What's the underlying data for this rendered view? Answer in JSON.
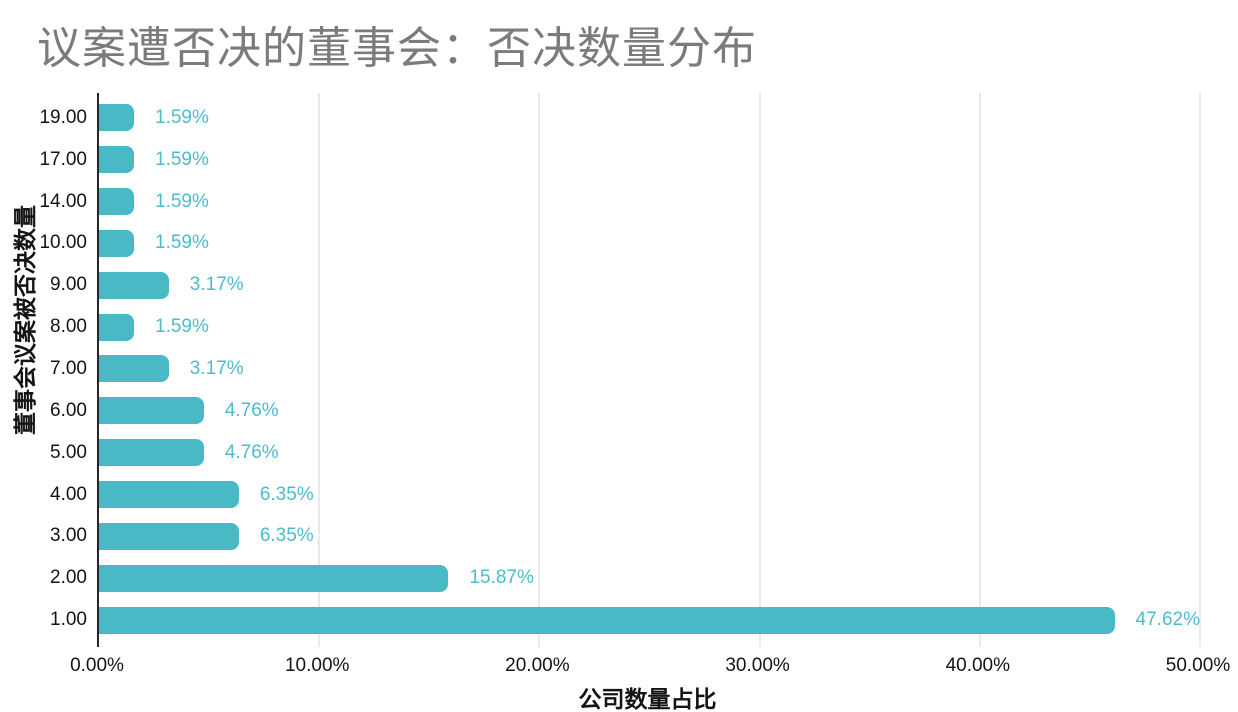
{
  "title": "议案遭否决的董事会：否决数量分布",
  "chart_data": {
    "type": "bar",
    "orientation": "horizontal",
    "title": "议案遭否决的董事会：否决数量分布",
    "xlabel": "公司数量占比",
    "ylabel": "董事会议案被否决数量",
    "categories": [
      "19.00",
      "17.00",
      "14.00",
      "10.00",
      "9.00",
      "8.00",
      "7.00",
      "6.00",
      "5.00",
      "4.00",
      "3.00",
      "2.00",
      "1.00"
    ],
    "values": [
      1.59,
      1.59,
      1.59,
      1.59,
      3.17,
      1.59,
      3.17,
      4.76,
      4.76,
      6.35,
      6.35,
      15.87,
      47.62
    ],
    "value_labels": [
      "1.59%",
      "1.59%",
      "1.59%",
      "1.59%",
      "3.17%",
      "1.59%",
      "3.17%",
      "4.76%",
      "4.76%",
      "6.35%",
      "6.35%",
      "15.87%",
      "47.62%"
    ],
    "x_ticks": [
      "0.00%",
      "10.00%",
      "20.00%",
      "30.00%",
      "40.00%",
      "50.00%"
    ],
    "xlim": [
      0,
      50
    ],
    "grid": "vertical-only",
    "legend": "none"
  },
  "colors": {
    "bar": "#48b9c5",
    "value_label": "#4cbccd",
    "title_text": "#7b7b7b",
    "axis_text": "#141414",
    "gridline": "#d6d6d6",
    "axis_line": "#262626",
    "background": "#ffffff"
  }
}
